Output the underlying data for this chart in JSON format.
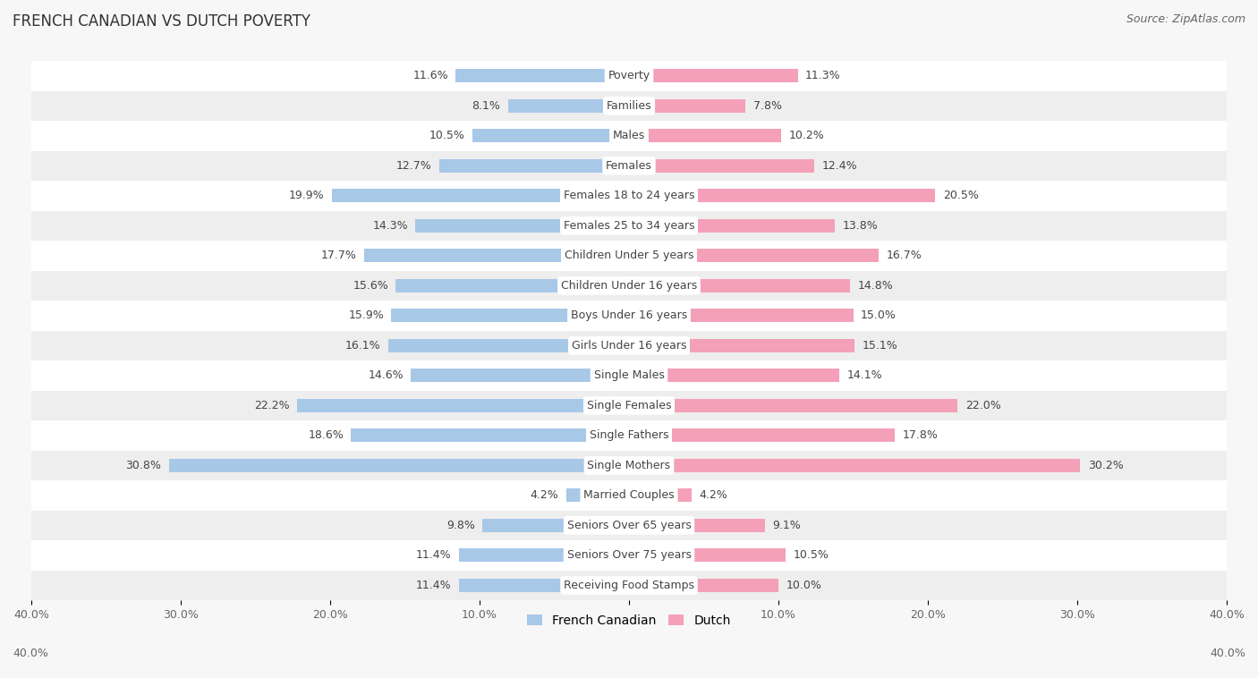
{
  "title": "FRENCH CANADIAN VS DUTCH POVERTY",
  "source": "Source: ZipAtlas.com",
  "categories": [
    "Poverty",
    "Families",
    "Males",
    "Females",
    "Females 18 to 24 years",
    "Females 25 to 34 years",
    "Children Under 5 years",
    "Children Under 16 years",
    "Boys Under 16 years",
    "Girls Under 16 years",
    "Single Males",
    "Single Females",
    "Single Fathers",
    "Single Mothers",
    "Married Couples",
    "Seniors Over 65 years",
    "Seniors Over 75 years",
    "Receiving Food Stamps"
  ],
  "french_canadian": [
    11.6,
    8.1,
    10.5,
    12.7,
    19.9,
    14.3,
    17.7,
    15.6,
    15.9,
    16.1,
    14.6,
    22.2,
    18.6,
    30.8,
    4.2,
    9.8,
    11.4,
    11.4
  ],
  "dutch": [
    11.3,
    7.8,
    10.2,
    12.4,
    20.5,
    13.8,
    16.7,
    14.8,
    15.0,
    15.1,
    14.1,
    22.0,
    17.8,
    30.2,
    4.2,
    9.1,
    10.5,
    10.0
  ],
  "french_color": "#a8c8e8",
  "dutch_color": "#f4a0b8",
  "background_color": "#f7f7f7",
  "row_bg_white": "#ffffff",
  "row_bg_gray": "#eeeeee",
  "axis_limit": 40.0,
  "bar_height": 0.45,
  "label_fontsize": 9.0,
  "title_fontsize": 12,
  "source_fontsize": 9,
  "legend_fontsize": 10,
  "value_fontsize": 9.0
}
